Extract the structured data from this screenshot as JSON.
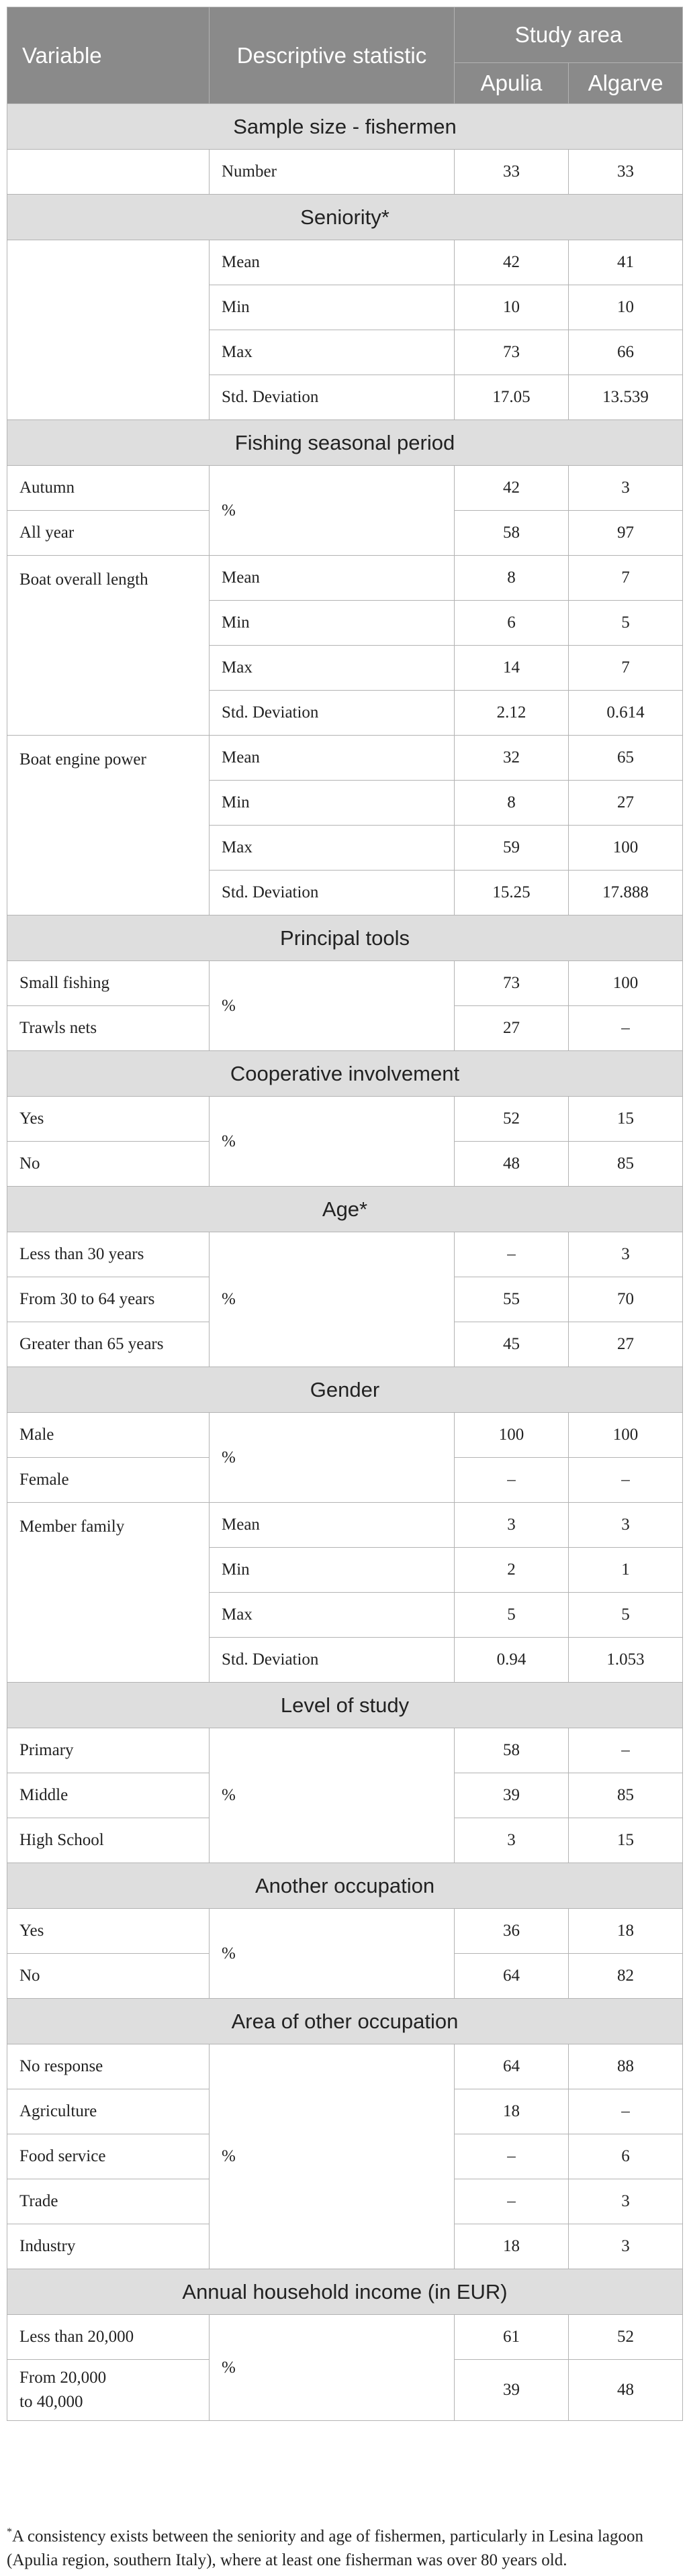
{
  "header": {
    "variable": "Variable",
    "descriptive_statistic": "Descriptive statistic",
    "study_area": "Study area",
    "apulia": "Apulia",
    "algarve": "Algarve"
  },
  "sections": [
    {
      "title": "Sample size - fishermen",
      "rows": [
        {
          "variable": "",
          "statistic": "Number",
          "apulia": "33",
          "algarve": "33"
        }
      ]
    },
    {
      "title": "Seniority*",
      "rows": [
        {
          "variable": "",
          "statistic": "Mean",
          "apulia": "42",
          "algarve": "41"
        },
        {
          "variable": "",
          "statistic": "Min",
          "apulia": "10",
          "algarve": "10"
        },
        {
          "variable": "",
          "statistic": "Max",
          "apulia": "73",
          "algarve": "66"
        },
        {
          "variable": "",
          "statistic": "Std. Deviation",
          "apulia": "17.05",
          "algarve": "13.539"
        }
      ]
    },
    {
      "title": "Fishing seasonal period",
      "rows": [
        {
          "variable": "Autumn",
          "statistic": "%",
          "apulia": "42",
          "algarve": "3"
        },
        {
          "variable": "All year",
          "statistic": "",
          "apulia": "58",
          "algarve": "97"
        },
        {
          "variable": "Boat overall length",
          "statistic": "Mean",
          "apulia": "8",
          "algarve": "7"
        },
        {
          "variable": "",
          "statistic": "Min",
          "apulia": "6",
          "algarve": "5"
        },
        {
          "variable": "",
          "statistic": "Max",
          "apulia": "14",
          "algarve": "7"
        },
        {
          "variable": "",
          "statistic": "Std. Deviation",
          "apulia": "2.12",
          "algarve": "0.614"
        },
        {
          "variable": "Boat engine power",
          "statistic": "Mean",
          "apulia": "32",
          "algarve": "65"
        },
        {
          "variable": "",
          "statistic": "Min",
          "apulia": "8",
          "algarve": "27"
        },
        {
          "variable": "",
          "statistic": "Max",
          "apulia": "59",
          "algarve": "100"
        },
        {
          "variable": "",
          "statistic": "Std. Deviation",
          "apulia": "15.25",
          "algarve": "17.888"
        }
      ]
    },
    {
      "title": "Principal tools",
      "rows": [
        {
          "variable": "Small fishing",
          "statistic": "%",
          "apulia": "73",
          "algarve": "100"
        },
        {
          "variable": "Trawls nets",
          "statistic": "",
          "apulia": "27",
          "algarve": "–"
        }
      ]
    },
    {
      "title": "Cooperative involvement",
      "rows": [
        {
          "variable": "Yes",
          "statistic": "%",
          "apulia": "52",
          "algarve": "15"
        },
        {
          "variable": "No",
          "statistic": "",
          "apulia": "48",
          "algarve": "85"
        }
      ]
    },
    {
      "title": "Age*",
      "rows": [
        {
          "variable": "Less than 30 years",
          "statistic": "%",
          "apulia": "–",
          "algarve": "3"
        },
        {
          "variable": "From 30 to 64 years",
          "statistic": "",
          "apulia": "55",
          "algarve": "70"
        },
        {
          "variable": "Greater than 65 years",
          "statistic": "",
          "apulia": "45",
          "algarve": "27"
        }
      ]
    },
    {
      "title": "Gender",
      "rows": [
        {
          "variable": "Male",
          "statistic": "%",
          "apulia": "100",
          "algarve": "100"
        },
        {
          "variable": "Female",
          "statistic": "",
          "apulia": "–",
          "algarve": "–"
        },
        {
          "variable": "Member family",
          "statistic": "Mean",
          "apulia": "3",
          "algarve": "3"
        },
        {
          "variable": "",
          "statistic": "Min",
          "apulia": "2",
          "algarve": "1"
        },
        {
          "variable": "",
          "statistic": "Max",
          "apulia": "5",
          "algarve": "5"
        },
        {
          "variable": "",
          "statistic": "Std. Deviation",
          "apulia": "0.94",
          "algarve": "1.053"
        }
      ]
    },
    {
      "title": "Level of study",
      "rows": [
        {
          "variable": "Primary",
          "statistic": "%",
          "apulia": "58",
          "algarve": "–"
        },
        {
          "variable": "Middle",
          "statistic": "",
          "apulia": "39",
          "algarve": "85"
        },
        {
          "variable": "High School",
          "statistic": "",
          "apulia": "3",
          "algarve": "15"
        }
      ]
    },
    {
      "title": "Another occupation",
      "rows": [
        {
          "variable": "Yes",
          "statistic": "%",
          "apulia": "36",
          "algarve": "18"
        },
        {
          "variable": "No",
          "statistic": "",
          "apulia": "64",
          "algarve": "82"
        }
      ]
    },
    {
      "title": "Area of other occupation",
      "rows": [
        {
          "variable": "No response",
          "statistic": "%",
          "apulia": "64",
          "algarve": "88"
        },
        {
          "variable": "Agriculture",
          "statistic": "",
          "apulia": "18",
          "algarve": "–"
        },
        {
          "variable": "Food service",
          "statistic": "",
          "apulia": "–",
          "algarve": "6"
        },
        {
          "variable": "Trade",
          "statistic": "",
          "apulia": "–",
          "algarve": "3"
        },
        {
          "variable": "Industry",
          "statistic": "",
          "apulia": "18",
          "algarve": "3"
        }
      ]
    },
    {
      "title": "Annual household income (in EUR)",
      "rows": [
        {
          "variable": "Less than 20,000",
          "statistic": "%",
          "apulia": "61",
          "algarve": "52"
        },
        {
          "variable": "From 20,000\nto 40,000",
          "statistic": "",
          "apulia": "39",
          "algarve": "48"
        }
      ]
    }
  ],
  "footnote": {
    "marker": "*",
    "text": "A consistency exists between the seniority and age of fishermen, particularly in Lesina lagoon (Apulia region, southern Italy), where at least one fisherman was over 80 years old."
  }
}
